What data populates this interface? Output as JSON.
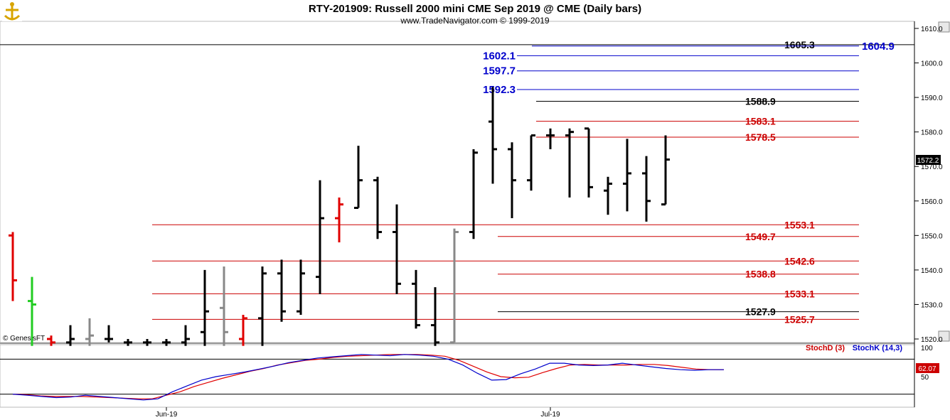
{
  "header": {
    "title": "RTY-201909:  Russell 2000 mini CME Sep 2019 @ CME  (Daily bars)",
    "subtitle": "www.TradeNavigator.com © 1999-2019"
  },
  "footer": {
    "credit": "© GenesisFT"
  },
  "colors": {
    "up_bar": "#000000",
    "down_bar": "#000000",
    "special_red": "#e00000",
    "special_green": "#22cc22",
    "special_gray": "#888888",
    "level_blue": "#0000cc",
    "level_red": "#cc0000",
    "level_black": "#000000",
    "stoch_d": "#cc0000",
    "stoch_k": "#0000cc"
  },
  "chart_data": [
    {
      "type": "ohlc",
      "title": "RTY-201909:  Russell 2000 mini CME Sep 2019 @ CME  (Daily bars)",
      "ylim": [
        1518,
        1612
      ],
      "y_ticks": [
        "1610.0",
        "1600.0",
        "1590.0",
        "1580.0",
        "1570.0",
        "1560.0",
        "1550.0",
        "1540.0",
        "1530.0",
        "1520.0"
      ],
      "x_labels": [
        {
          "label": "Jun-19",
          "bar": 8
        },
        {
          "label": "Jul-19",
          "bar": 28
        }
      ],
      "last_price": "1572.2",
      "bars": [
        {
          "o": 1550,
          "h": 1551,
          "l": 1531,
          "c": 1537,
          "color": "red"
        },
        {
          "o": 1531,
          "h": 1538,
          "l": 1518,
          "c": 1530,
          "color": "green"
        },
        {
          "o": 1520,
          "h": 1521,
          "l": 1518,
          "c": 1519,
          "color": "red"
        },
        {
          "o": 1519,
          "h": 1524,
          "l": 1518,
          "c": 1520,
          "color": "black"
        },
        {
          "o": 1520,
          "h": 1526,
          "l": 1518,
          "c": 1521,
          "color": "gray"
        },
        {
          "o": 1520,
          "h": 1524,
          "l": 1519,
          "c": 1520,
          "color": "black"
        },
        {
          "o": 1519,
          "h": 1520,
          "l": 1518,
          "c": 1519,
          "color": "black"
        },
        {
          "o": 1519,
          "h": 1520,
          "l": 1518,
          "c": 1519,
          "color": "black"
        },
        {
          "o": 1519,
          "h": 1520,
          "l": 1518,
          "c": 1519,
          "color": "black"
        },
        {
          "o": 1519,
          "h": 1524,
          "l": 1518,
          "c": 1520,
          "color": "black"
        },
        {
          "o": 1522,
          "h": 1540,
          "l": 1518,
          "c": 1528,
          "color": "black"
        },
        {
          "o": 1529,
          "h": 1541,
          "l": 1518,
          "c": 1522,
          "color": "gray"
        },
        {
          "o": 1520,
          "h": 1527,
          "l": 1518,
          "c": 1526,
          "color": "red"
        },
        {
          "o": 1526,
          "h": 1541,
          "l": 1518,
          "c": 1539,
          "color": "black"
        },
        {
          "o": 1539,
          "h": 1543,
          "l": 1525,
          "c": 1528,
          "color": "black"
        },
        {
          "o": 1528,
          "h": 1543,
          "l": 1527,
          "c": 1539,
          "color": "black"
        },
        {
          "o": 1538,
          "h": 1566,
          "l": 1533,
          "c": 1555,
          "color": "black"
        },
        {
          "o": 1555,
          "h": 1561,
          "l": 1548,
          "c": 1559,
          "color": "red"
        },
        {
          "o": 1558,
          "h": 1576,
          "l": 1558,
          "c": 1566,
          "color": "black"
        },
        {
          "o": 1566,
          "h": 1567,
          "l": 1549,
          "c": 1551,
          "color": "black"
        },
        {
          "o": 1551,
          "h": 1559,
          "l": 1533,
          "c": 1536,
          "color": "black"
        },
        {
          "o": 1536,
          "h": 1540,
          "l": 1523,
          "c": 1524,
          "color": "black"
        },
        {
          "o": 1524,
          "h": 1535,
          "l": 1518,
          "c": 1519,
          "color": "black"
        },
        {
          "o": 1519,
          "h": 1552,
          "l": 1519,
          "c": 1551,
          "color": "gray"
        },
        {
          "o": 1551,
          "h": 1575,
          "l": 1549,
          "c": 1574,
          "color": "black"
        },
        {
          "o": 1583,
          "h": 1593,
          "l": 1565,
          "c": 1575,
          "color": "black"
        },
        {
          "o": 1575,
          "h": 1577,
          "l": 1555,
          "c": 1566,
          "color": "black"
        },
        {
          "o": 1566,
          "h": 1579,
          "l": 1563,
          "c": 1579,
          "color": "black"
        },
        {
          "o": 1579,
          "h": 1581,
          "l": 1575,
          "c": 1579,
          "color": "black"
        },
        {
          "o": 1579,
          "h": 1581,
          "l": 1561,
          "c": 1580,
          "color": "black"
        },
        {
          "o": 1581,
          "h": 1581,
          "l": 1561,
          "c": 1564,
          "color": "black"
        },
        {
          "o": 1563,
          "h": 1567,
          "l": 1556,
          "c": 1565,
          "color": "black"
        },
        {
          "o": 1565,
          "h": 1578,
          "l": 1557,
          "c": 1568,
          "color": "black"
        },
        {
          "o": 1568,
          "h": 1573,
          "l": 1554,
          "c": 1560,
          "color": "black"
        },
        {
          "o": 1559,
          "h": 1579,
          "l": 1559,
          "c": 1572,
          "color": "black"
        }
      ],
      "levels": [
        {
          "value": 1605.3,
          "label": "1605.3",
          "color": "black",
          "bar_start": 0
        },
        {
          "value": 1604.9,
          "label": "1604.9",
          "color": "blue",
          "bar_start": 27
        },
        {
          "value": 1602.1,
          "label": "1602.1",
          "color": "blue",
          "bar_start": 27
        },
        {
          "value": 1597.7,
          "label": "1597.7",
          "color": "blue",
          "bar_start": 27
        },
        {
          "value": 1592.3,
          "label": "1592.3",
          "color": "blue",
          "bar_start": 27
        },
        {
          "value": 1588.9,
          "label": "1588.9",
          "color": "black",
          "bar_start": 28
        },
        {
          "value": 1583.1,
          "label": "1583.1",
          "color": "red",
          "bar_start": 28
        },
        {
          "value": 1578.5,
          "label": "1578.5",
          "color": "red",
          "bar_start": 28
        },
        {
          "value": 1553.1,
          "label": "1553.1",
          "color": "red",
          "bar_start": 8
        },
        {
          "value": 1549.7,
          "label": "1549.7",
          "color": "red",
          "bar_start": 26
        },
        {
          "value": 1542.6,
          "label": "1542.6",
          "color": "red",
          "bar_start": 8
        },
        {
          "value": 1538.8,
          "label": "1538.8",
          "color": "red",
          "bar_start": 26
        },
        {
          "value": 1533.1,
          "label": "1533.1",
          "color": "red",
          "bar_start": 8
        },
        {
          "value": 1527.9,
          "label": "1527.9",
          "color": "black",
          "bar_start": 26
        },
        {
          "value": 1525.7,
          "label": "1525.7",
          "color": "red",
          "bar_start": 8
        }
      ]
    },
    {
      "type": "line",
      "ylim": [
        0,
        100
      ],
      "y_ticks": [
        "100",
        "50"
      ],
      "reference_lines": [
        80,
        20
      ],
      "last_value": "62.07",
      "series": [
        {
          "name": "StochD (3)",
          "color": "red",
          "values": [
            20,
            19,
            17,
            16,
            16,
            16,
            15,
            14,
            13,
            12,
            12,
            18,
            24,
            33,
            40,
            47,
            53,
            59,
            64,
            70,
            74,
            78,
            80,
            83,
            85,
            86,
            87,
            88,
            88,
            88,
            87,
            85,
            78,
            68,
            58,
            50,
            48,
            49,
            57,
            64,
            70,
            71,
            70,
            70,
            70,
            71,
            71,
            69,
            66,
            63,
            62,
            62
          ]
        },
        {
          "name": "StochK (14,3)",
          "color": "blue",
          "values": [
            20,
            18,
            16,
            14,
            15,
            18,
            16,
            14,
            12,
            10,
            12,
            24,
            34,
            44,
            50,
            54,
            58,
            63,
            68,
            74,
            78,
            82,
            84,
            86,
            88,
            87,
            86,
            88,
            87,
            85,
            80,
            70,
            56,
            44,
            45,
            55,
            63,
            73,
            73,
            70,
            69,
            70,
            73,
            70,
            67,
            64,
            62,
            61,
            62,
            62
          ]
        }
      ]
    }
  ]
}
